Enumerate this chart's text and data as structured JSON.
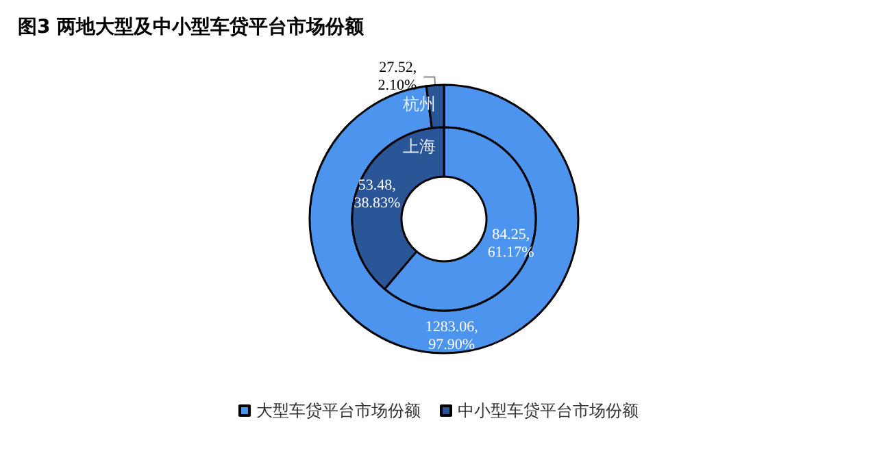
{
  "chart_data": {
    "type": "donut",
    "title": "图3 两地大型及中小型车贷平台市场份额",
    "categories": [
      "大型车贷平台市场份额",
      "中小型车贷平台市场份额"
    ],
    "colors": [
      "#4d94ee",
      "#2a5597"
    ],
    "legend": "bottom",
    "series": [
      {
        "name": "杭州",
        "values": [
          1283.06,
          27.52
        ],
        "value_labels": [
          "1283.06,\n97.90%",
          "27.52,\n2.10%"
        ]
      },
      {
        "name": "上海",
        "values": [
          84.25,
          53.48
        ],
        "value_labels": [
          "84.25,\n61.17%",
          "53.48,\n38.83%"
        ]
      }
    ]
  }
}
